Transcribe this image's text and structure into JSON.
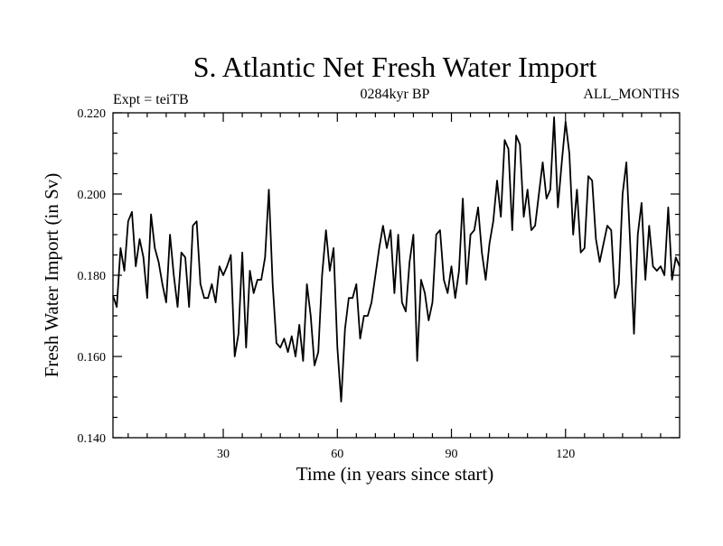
{
  "chart_data": {
    "type": "line",
    "title": "S. Atlantic Net Fresh Water Import",
    "subtitle_left": "Expt = teiTB",
    "subtitle_center": "0284kyr BP",
    "subtitle_right": "ALL_MONTHS",
    "xlabel": "Time (in years since start)",
    "ylabel": "Fresh Water Import (in Sv)",
    "xlim": [
      1,
      150
    ],
    "ylim": [
      0.14,
      0.22
    ],
    "xticks": [
      30,
      60,
      90,
      120
    ],
    "xtick_labels": [
      "30",
      "60",
      "90",
      "120"
    ],
    "yticks": [
      0.14,
      0.16,
      0.18,
      0.2,
      0.22
    ],
    "ytick_labels": [
      "0.140",
      "0.160",
      "0.180",
      "0.200",
      "0.220"
    ],
    "x": [
      1,
      2,
      3,
      4,
      5,
      6,
      7,
      8,
      9,
      10,
      11,
      12,
      13,
      14,
      15,
      16,
      17,
      18,
      19,
      20,
      21,
      22,
      23,
      24,
      25,
      26,
      27,
      28,
      29,
      30,
      31,
      32,
      33,
      34,
      35,
      36,
      37,
      38,
      39,
      40,
      41,
      42,
      43,
      44,
      45,
      46,
      47,
      48,
      49,
      50,
      51,
      52,
      53,
      54,
      55,
      56,
      57,
      58,
      59,
      60,
      61,
      62,
      63,
      64,
      65,
      66,
      67,
      68,
      69,
      70,
      71,
      72,
      73,
      74,
      75,
      76,
      77,
      78,
      79,
      80,
      81,
      82,
      83,
      84,
      85,
      86,
      87,
      88,
      89,
      90,
      91,
      92,
      93,
      94,
      95,
      96,
      97,
      98,
      99,
      100,
      101,
      102,
      103,
      104,
      105,
      106,
      107,
      108,
      109,
      110,
      111,
      112,
      113,
      114,
      115,
      116,
      117,
      118,
      119,
      120,
      121,
      122,
      123,
      124,
      125,
      126,
      127,
      128,
      129,
      130,
      131,
      132,
      133,
      134,
      135,
      136,
      137,
      138,
      139,
      140,
      141,
      142,
      143,
      144,
      145,
      146,
      147,
      148,
      149,
      150
    ],
    "y": [
      0.175,
      0.1722,
      0.1867,
      0.1811,
      0.1933,
      0.1956,
      0.1822,
      0.1889,
      0.1844,
      0.1744,
      0.195,
      0.1867,
      0.1833,
      0.1778,
      0.1733,
      0.19,
      0.18,
      0.1722,
      0.1856,
      0.1844,
      0.1722,
      0.1922,
      0.1933,
      0.1778,
      0.1744,
      0.1744,
      0.1778,
      0.1733,
      0.1822,
      0.18,
      0.1822,
      0.185,
      0.16,
      0.1656,
      0.1856,
      0.1622,
      0.1811,
      0.1756,
      0.1789,
      0.1789,
      0.1844,
      0.2011,
      0.1778,
      0.1633,
      0.1622,
      0.1644,
      0.1611,
      0.165,
      0.16,
      0.1678,
      0.1589,
      0.1778,
      0.17,
      0.1578,
      0.1611,
      0.18,
      0.1911,
      0.1811,
      0.1867,
      0.1622,
      0.1489,
      0.1667,
      0.1744,
      0.1744,
      0.1778,
      0.1644,
      0.17,
      0.17,
      0.1733,
      0.18,
      0.1867,
      0.1922,
      0.1867,
      0.1911,
      0.1756,
      0.19,
      0.1733,
      0.1711,
      0.1833,
      0.19,
      0.1589,
      0.1789,
      0.1756,
      0.1689,
      0.1733,
      0.19,
      0.1911,
      0.1789,
      0.1756,
      0.1822,
      0.1744,
      0.1811,
      0.1989,
      0.1778,
      0.19,
      0.1911,
      0.1967,
      0.1856,
      0.1789,
      0.1878,
      0.1933,
      0.2033,
      0.1944,
      0.2133,
      0.2111,
      0.1911,
      0.2144,
      0.2122,
      0.1944,
      0.2011,
      0.1911,
      0.1922,
      0.2,
      0.2078,
      0.1989,
      0.2011,
      0.2189,
      0.1967,
      0.2078,
      0.2178,
      0.21,
      0.19,
      0.2011,
      0.1856,
      0.1867,
      0.2044,
      0.2033,
      0.1889,
      0.1833,
      0.1878,
      0.1922,
      0.1911,
      0.1744,
      0.1778,
      0.2,
      0.2078,
      0.1878,
      0.1656,
      0.19,
      0.1978,
      0.1789,
      0.1922,
      0.1822,
      0.1811,
      0.1822,
      0.18,
      0.1967,
      0.1789,
      0.1844,
      0.1822
    ]
  }
}
